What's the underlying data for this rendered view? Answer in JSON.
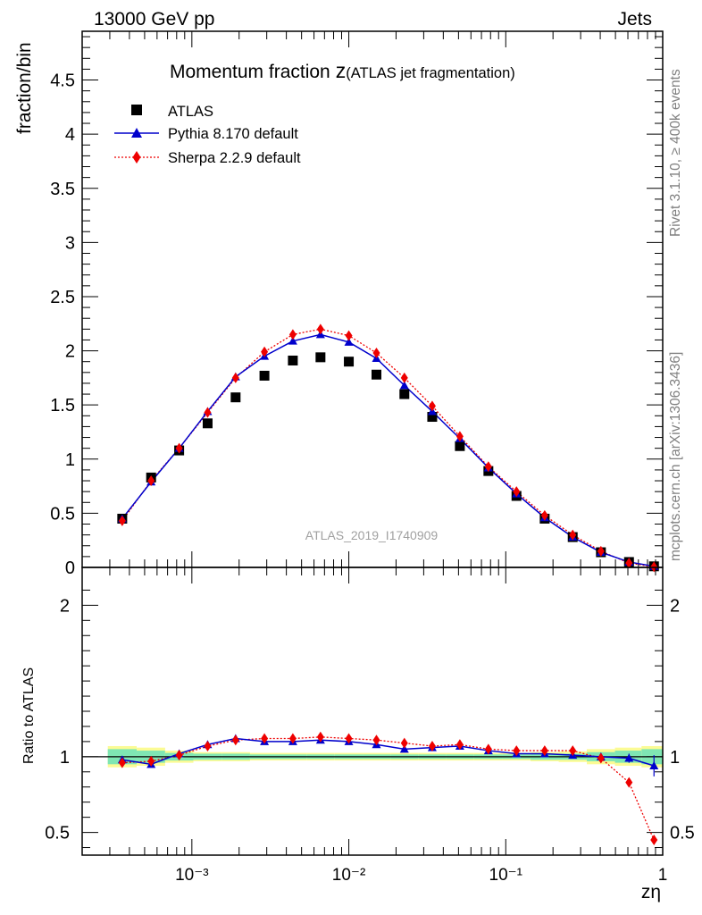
{
  "header": {
    "left": "13000 GeV pp",
    "right": "Jets"
  },
  "side_labels": {
    "rivet": "Rivet 3.1.10, ≥ 400k events",
    "mcplots": "mcplots.cern.ch [arXiv:1306.3436]"
  },
  "chart_data": {
    "type": "scatter",
    "title": "Momentum fraction",
    "title_symbol": "z",
    "subtitle": "(ATLAS jet fragmentation)",
    "watermark": "ATLAS_2019_I1740909",
    "xlabel": "zη",
    "ylabel": "fraction/bin",
    "ratio_ylabel": "Ratio to ATLAS",
    "x_scale": "log",
    "xlim": [
      0.0002,
      1.0
    ],
    "ylim": [
      0,
      4.95
    ],
    "ratio_ylim": [
      0.35,
      2.25
    ],
    "x_tick_labels": [
      "10⁻³",
      "10⁻²",
      "10⁻¹",
      "1"
    ],
    "y_tick_labels": [
      "0",
      "0.5",
      "1",
      "1.5",
      "2",
      "2.5",
      "3",
      "3.5",
      "4",
      "4.5"
    ],
    "ratio_tick_labels": [
      "0.5",
      "1",
      "2"
    ],
    "legend_position": "top-left",
    "colors": {
      "data": "#000000",
      "pythia": "#0000cc",
      "sherpa": "#ee0000",
      "band_inner": "#7fe6b3",
      "band_outer": "#fbfb95"
    },
    "x": [
      0.00036,
      0.00055,
      0.00083,
      0.00126,
      0.0019,
      0.0029,
      0.0044,
      0.0066,
      0.01,
      0.015,
      0.0226,
      0.034,
      0.051,
      0.0775,
      0.117,
      0.177,
      0.267,
      0.404,
      0.61,
      0.88
    ],
    "series": [
      {
        "name": "ATLAS",
        "marker": "square",
        "values": [
          0.45,
          0.83,
          1.08,
          1.33,
          1.57,
          1.77,
          1.91,
          1.94,
          1.9,
          1.78,
          1.6,
          1.39,
          1.12,
          0.89,
          0.66,
          0.45,
          0.28,
          0.14,
          0.05,
          0.01
        ],
        "ratio": [
          1.0,
          1.0,
          1.0,
          1.0,
          1.0,
          1.0,
          1.0,
          1.0,
          1.0,
          1.0,
          1.0,
          1.0,
          1.0,
          1.0,
          1.0,
          1.0,
          1.0,
          1.0,
          1.0,
          1.0
        ],
        "band_inner": [
          0.05,
          0.04,
          0.025,
          0.02,
          0.02,
          0.015,
          0.015,
          0.015,
          0.015,
          0.015,
          0.015,
          0.015,
          0.015,
          0.015,
          0.015,
          0.02,
          0.02,
          0.03,
          0.04,
          0.05
        ],
        "band_outer": [
          0.07,
          0.06,
          0.04,
          0.03,
          0.03,
          0.025,
          0.025,
          0.025,
          0.025,
          0.025,
          0.025,
          0.025,
          0.025,
          0.025,
          0.025,
          0.03,
          0.035,
          0.05,
          0.06,
          0.07
        ]
      },
      {
        "name": "Pythia 8.170 default",
        "marker": "triangle",
        "values": [
          0.45,
          0.79,
          1.1,
          1.44,
          1.76,
          1.95,
          2.09,
          2.15,
          2.08,
          1.93,
          1.68,
          1.44,
          1.19,
          0.92,
          0.68,
          0.46,
          0.28,
          0.14,
          0.05,
          0.01
        ],
        "ratio": [
          0.98,
          0.95,
          1.02,
          1.08,
          1.12,
          1.1,
          1.1,
          1.11,
          1.1,
          1.08,
          1.05,
          1.06,
          1.07,
          1.04,
          1.02,
          1.02,
          1.01,
          1.0,
          0.99,
          0.94
        ]
      },
      {
        "name": "Sherpa 2.2.9 default",
        "marker": "diamond",
        "values": [
          0.43,
          0.8,
          1.1,
          1.43,
          1.75,
          1.99,
          2.15,
          2.2,
          2.14,
          1.98,
          1.75,
          1.49,
          1.21,
          0.93,
          0.7,
          0.48,
          0.3,
          0.15,
          0.04,
          0.005
        ],
        "ratio": [
          0.96,
          0.97,
          1.01,
          1.07,
          1.11,
          1.12,
          1.12,
          1.13,
          1.12,
          1.11,
          1.09,
          1.07,
          1.08,
          1.05,
          1.04,
          1.04,
          1.04,
          0.99,
          0.83,
          0.45
        ]
      }
    ]
  }
}
